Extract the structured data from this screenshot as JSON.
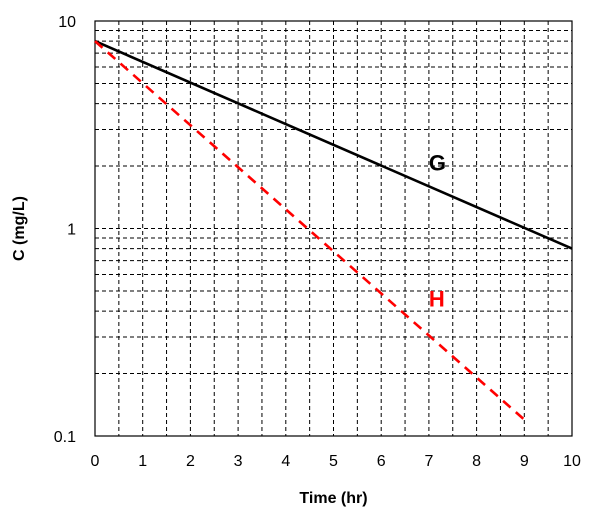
{
  "chart_data": {
    "type": "line",
    "title": "",
    "xlabel": "Time (hr)",
    "ylabel": "C (mg/L)",
    "xlim": [
      0,
      10
    ],
    "ylim": [
      0.1,
      10
    ],
    "yscale": "log",
    "grid": "dashed, major and minor",
    "xticks": [
      "0",
      "1",
      "2",
      "3",
      "4",
      "5",
      "6",
      "7",
      "8",
      "9",
      "10"
    ],
    "yticks": [
      "0.1",
      "1",
      "10"
    ],
    "series": [
      {
        "name": "G",
        "style": "solid",
        "color": "#000000",
        "x": [
          0,
          10
        ],
        "y": [
          8,
          0.8
        ]
      },
      {
        "name": "H",
        "style": "dashed",
        "color": "#ff0000",
        "x": [
          0,
          9
        ],
        "y": [
          8,
          0.12
        ]
      }
    ]
  }
}
